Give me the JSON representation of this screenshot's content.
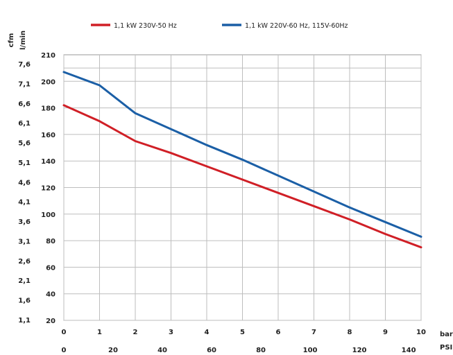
{
  "chart_data": {
    "type": "line",
    "x_primary": {
      "unit": "bar",
      "ticks": [
        "0",
        "1",
        "2",
        "3",
        "4",
        "5",
        "6",
        "7",
        "8",
        "9",
        "10"
      ],
      "range": [
        0,
        10
      ]
    },
    "x_secondary": {
      "unit": "PSI",
      "ticks": [
        "0",
        "20",
        "40",
        "60",
        "80",
        "100",
        "120",
        "140"
      ],
      "range": [
        0,
        145.04
      ]
    },
    "y_primary": {
      "unit": "l/min",
      "ticks": [
        "20",
        "40",
        "60",
        "80",
        "100",
        "120",
        "140",
        "160",
        "180",
        "200",
        "210"
      ],
      "range": [
        20,
        220
      ]
    },
    "y_secondary": {
      "unit": "cfm",
      "ticks": [
        "1,1",
        "1,6",
        "2,1",
        "2,6",
        "3,1",
        "3,6",
        "4,1",
        "4,6",
        "5,1",
        "5,6",
        "6,1",
        "6,6",
        "7,1",
        "7,6"
      ]
    },
    "grid": true,
    "legend_position": "top",
    "series": [
      {
        "name": "1,1 kW 230V-50 Hz",
        "color": "#d01f26",
        "x": [
          0,
          1,
          2,
          3,
          4,
          5,
          6,
          7,
          8,
          9,
          10
        ],
        "values": [
          182,
          170,
          155,
          146,
          136,
          126,
          116,
          106,
          96,
          85,
          75
        ]
      },
      {
        "name": "1,1 kW 220V-60 Hz, 115V-60Hz",
        "color": "#1b5fa6",
        "x": [
          0,
          1,
          2,
          3,
          4,
          5,
          6,
          7,
          8,
          9,
          10
        ],
        "values": [
          207,
          197,
          176,
          164,
          152,
          141,
          129,
          117,
          105,
          94,
          83
        ]
      }
    ]
  }
}
